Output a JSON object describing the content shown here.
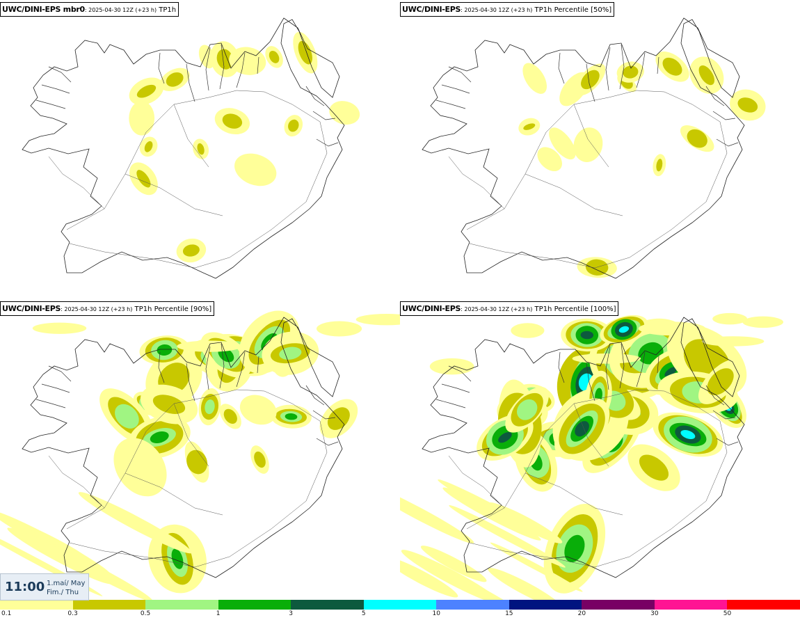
{
  "panels": [
    {
      "bold": "UWC/DINI-EPS mbr0",
      "small": ": 2025-04-30 12Z (+23 h)",
      "normal": " TP1h",
      "intensity": 1.0,
      "seed": 11
    },
    {
      "bold": "UWC/DINI-EPS",
      "small": ": 2025-04-30 12Z (+23 h)",
      "normal": " TP1h Percentile [50%]",
      "intensity": 0.8,
      "seed": 23
    },
    {
      "bold": "UWC/DINI-EPS",
      "small": ": 2025-04-30 12Z (+23 h)",
      "normal": " TP1h Percentile [90%]",
      "intensity": 2.2,
      "seed": 37
    },
    {
      "bold": "UWC/DINI-EPS",
      "small": ": 2025-04-30 12Z (+23 h)",
      "normal": " TP1h Percentile [100%]",
      "intensity": 3.6,
      "seed": 53
    }
  ],
  "time": {
    "hour": "11:00",
    "line1": "1.maí/ May",
    "line2": "Fim./ Thu"
  },
  "colorbar": {
    "colors": [
      "#ffff99",
      "#c8c800",
      "#a0f582",
      "#09ae09",
      "#0d5a3e",
      "#00ffff",
      "#4d82ff",
      "#001480",
      "#780064",
      "#ff1493",
      "#ff0000"
    ],
    "ticks": [
      "0.1",
      "0.3",
      "0.5",
      "1",
      "3",
      "5",
      "10",
      "15",
      "20",
      "30",
      "50"
    ]
  }
}
